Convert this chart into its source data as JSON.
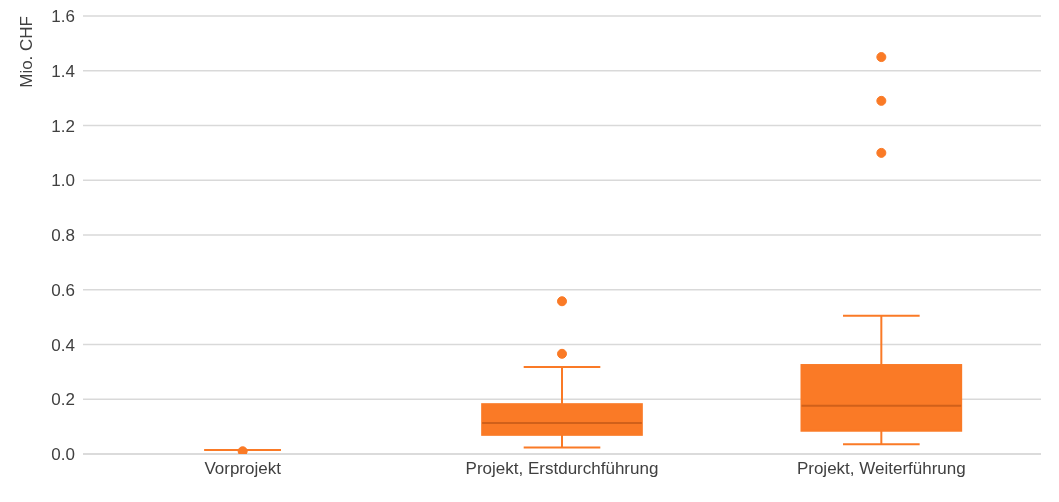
{
  "chart_data": {
    "type": "box",
    "ylabel": "Mio. CHF",
    "categories": [
      "Vorprojekt",
      "Projekt, Erstdurchführung",
      "Projekt, Weiterführung"
    ],
    "color": "#fa7a26",
    "boxes": [
      {
        "low": 0.015,
        "q1": 0.015,
        "median": 0.015,
        "q3": 0.015,
        "high": 0.015,
        "outliers": [
          0.01
        ]
      },
      {
        "low": 0.024,
        "q1": 0.07,
        "median": 0.113,
        "q3": 0.182,
        "high": 0.318,
        "outliers": [
          0.366,
          0.558
        ]
      },
      {
        "low": 0.036,
        "q1": 0.085,
        "median": 0.176,
        "q3": 0.325,
        "high": 0.505,
        "outliers": [
          1.1,
          1.29,
          1.45
        ]
      }
    ],
    "ylim": [
      0,
      1.6
    ],
    "yticks": [
      {
        "value": 0,
        "label": "0.0"
      },
      {
        "value": 0.2,
        "label": "0.2"
      },
      {
        "value": 0.4,
        "label": "0.4"
      },
      {
        "value": 0.6,
        "label": "0.6"
      },
      {
        "value": 0.8,
        "label": "0.8"
      },
      {
        "value": 1,
        "label": "1.0"
      },
      {
        "value": 1.2,
        "label": "1.2"
      },
      {
        "value": 1.4,
        "label": "1.4"
      },
      {
        "value": 1.6,
        "label": "1.6"
      }
    ],
    "grid": "y"
  }
}
